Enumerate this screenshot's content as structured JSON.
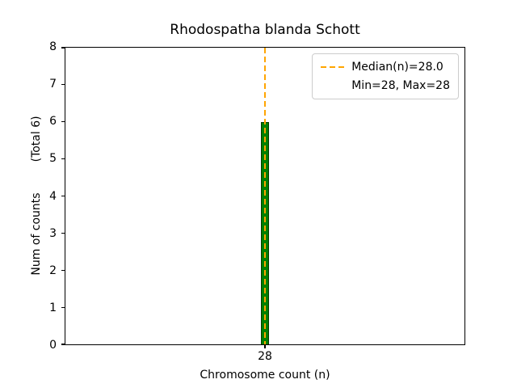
{
  "title": "Rhodospatha blanda Schott",
  "chart_data": {
    "type": "bar",
    "title": "Rhodospatha blanda Schott",
    "categories": [
      "28"
    ],
    "values": [
      6
    ],
    "total_counts": 6,
    "xlabel": "Chromosome count (n)",
    "ylabel": "Num of counts",
    "ylabel_annotation": "(Total 6)",
    "ylim": [
      0,
      8
    ],
    "yticks": [
      0,
      1,
      2,
      3,
      4,
      5,
      6,
      7,
      8
    ],
    "xticks": [
      "28"
    ],
    "median_x": "28",
    "median_value": "28.0",
    "min": 28,
    "max": 28,
    "grid": false,
    "legend": {
      "position": "upper right",
      "entries": [
        "Median(n)=28.0",
        "Min=28, Max=28"
      ]
    },
    "colors": {
      "bar_fill": "#008000",
      "bar_edge": "#003b00",
      "median_line": "#ffa500",
      "legend_border": "#cccccc",
      "axis": "#000000"
    }
  }
}
